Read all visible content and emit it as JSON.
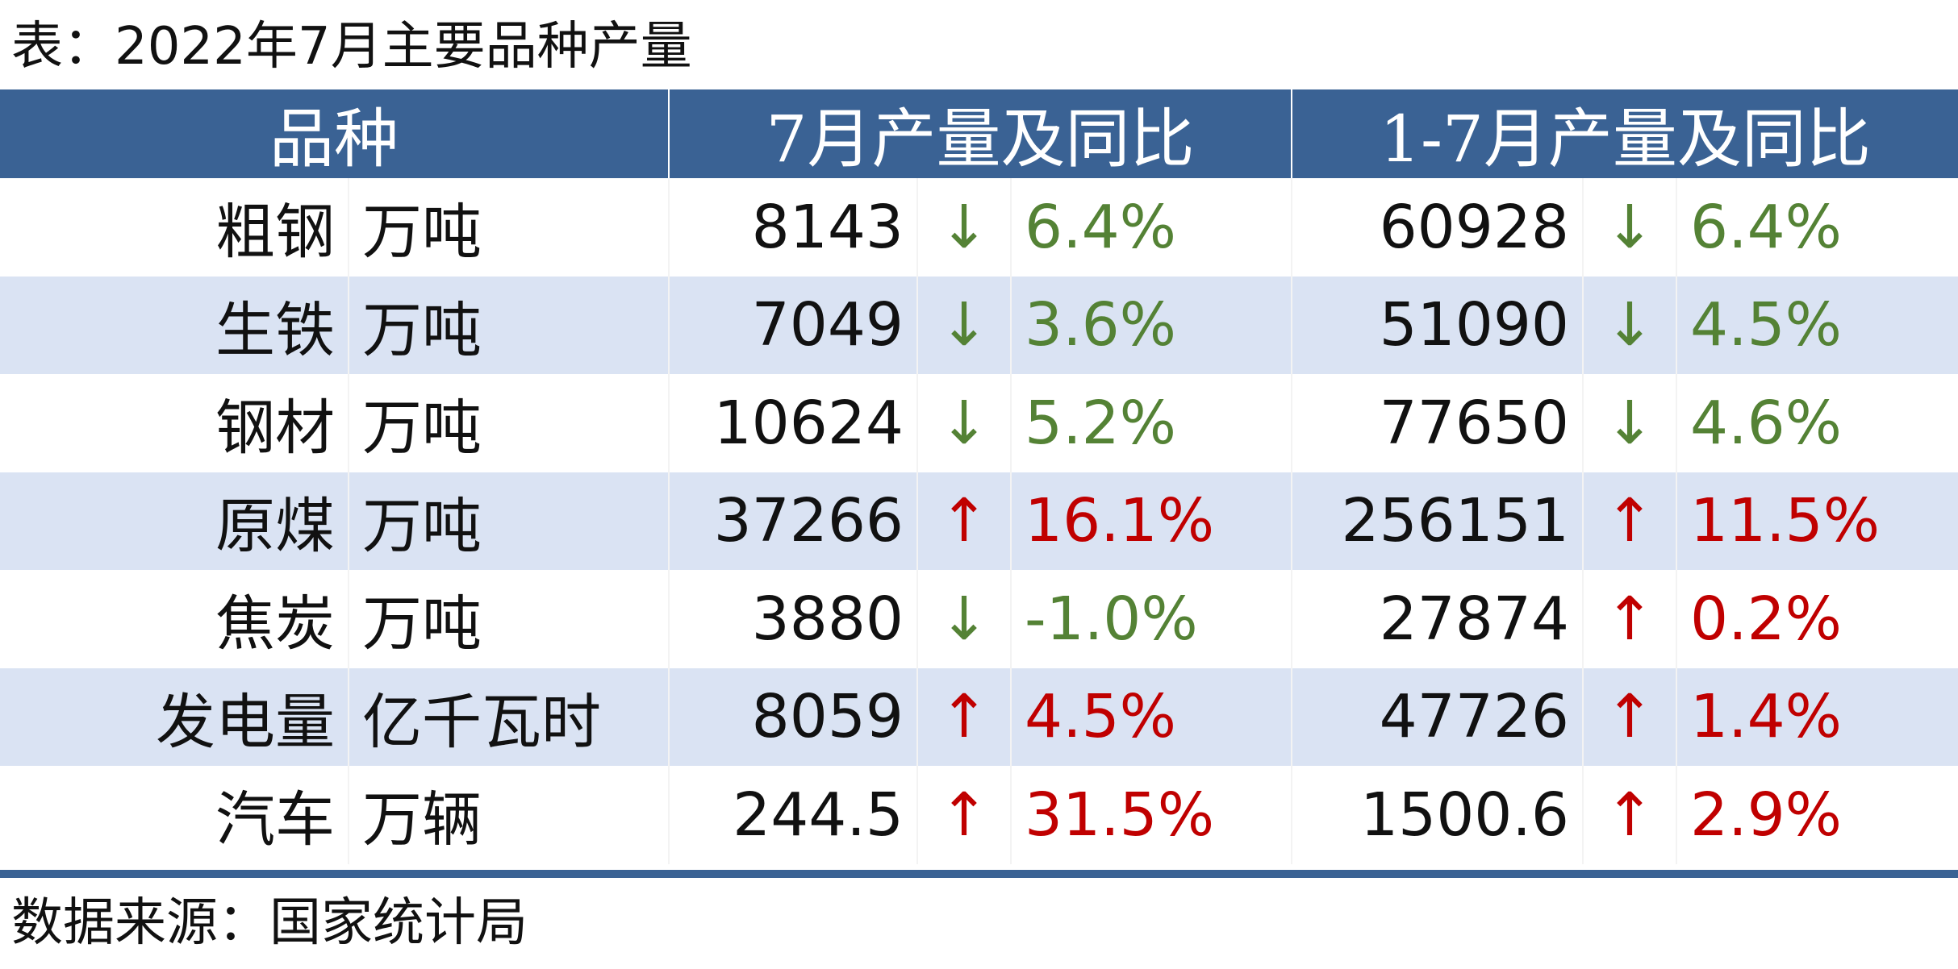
{
  "title": "表：2022年7月主要品种产量",
  "table": {
    "header": [
      "品种",
      "7月产量及同比",
      "1-7月产量及同比"
    ],
    "rows": [
      [
        "粗钢",
        "万吨",
        "8143",
        "↓",
        "6.4%",
        "60928",
        "↓",
        "6.4%"
      ],
      [
        "生铁",
        "万吨",
        "7049",
        "↓",
        "3.6%",
        "51090",
        "↓",
        "4.5%"
      ],
      [
        "钢材",
        "万吨",
        "10624",
        "↓",
        "5.2%",
        "77650",
        "↓",
        "4.6%"
      ],
      [
        "原煤",
        "万吨",
        "37266",
        "↑",
        "16.1%",
        "256151",
        "↑",
        "11.5%"
      ],
      [
        "焦炭",
        "万吨",
        "3880",
        "↓",
        "-1.0%",
        "27874",
        "↑",
        "0.2%"
      ],
      [
        "发电量",
        "亿千瓦时",
        "8059",
        "↑",
        "4.5%",
        "47726",
        "↑",
        "1.4%"
      ],
      [
        "汽车",
        "万辆",
        "244.5",
        "↑",
        "31.5%",
        "1500.6",
        "↑",
        "2.9%"
      ]
    ],
    "trend_colors": {
      "↑": "#c00000",
      "↓": "#548235"
    }
  },
  "source": "数据来源：国家统计局"
}
